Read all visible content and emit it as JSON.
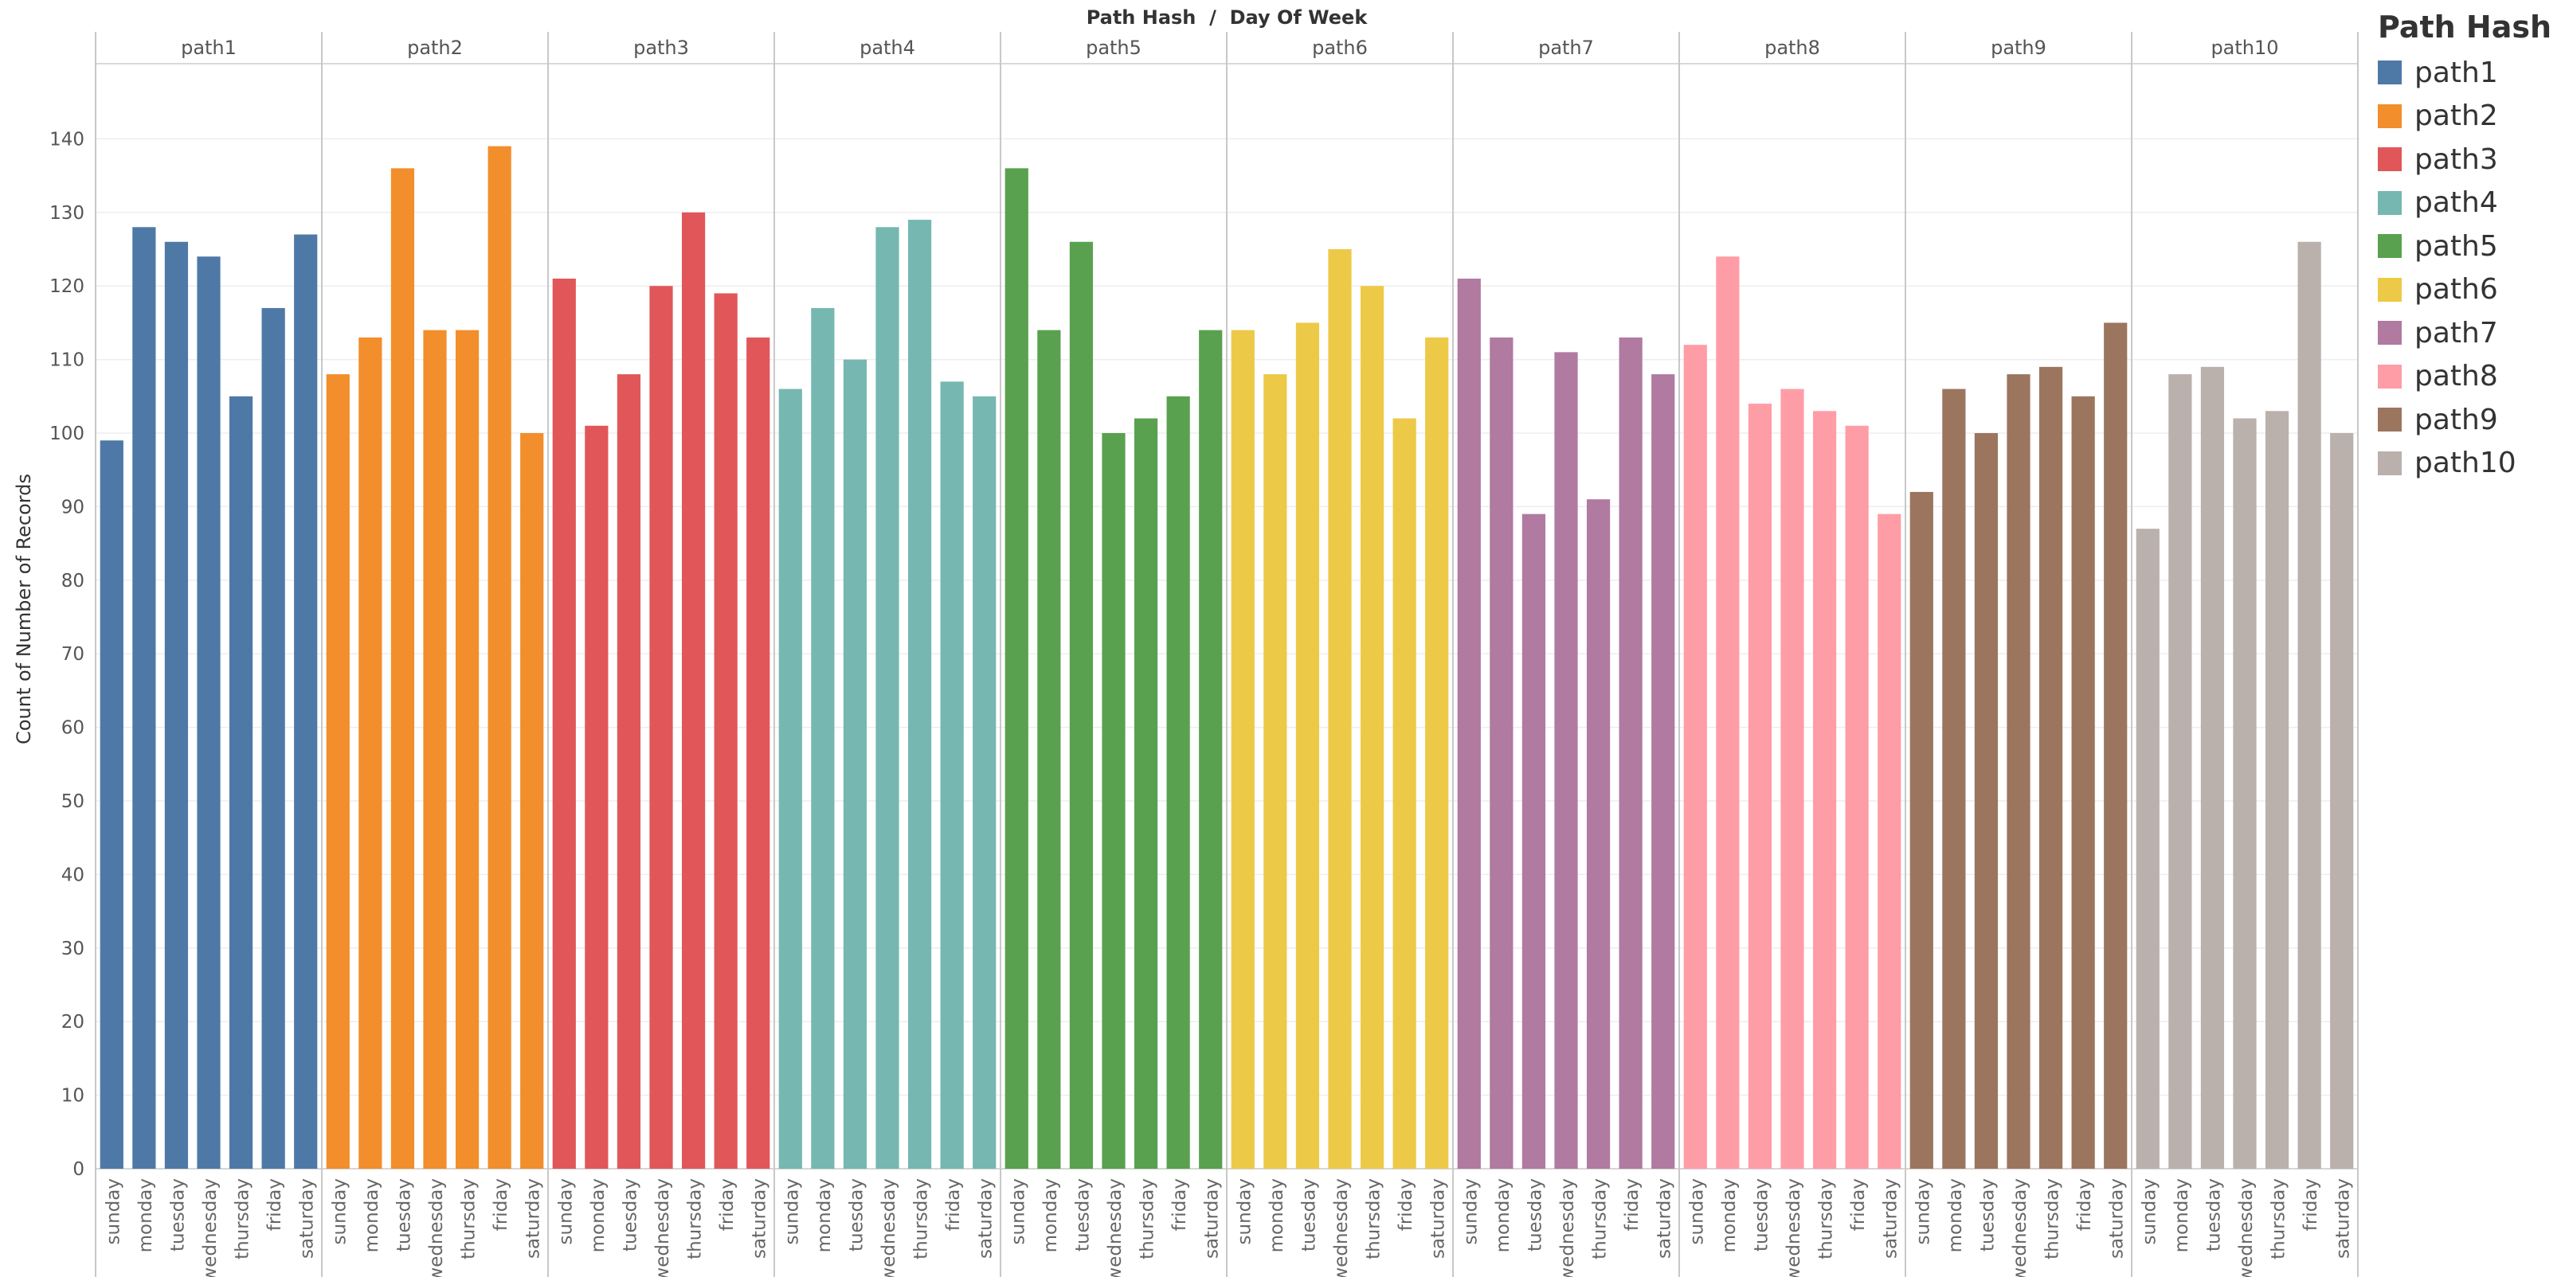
{
  "chart_data": {
    "type": "bar",
    "title": "Path Hash  /  Day Of Week",
    "ylabel": "Count of Number of Records",
    "xlabel": "",
    "ylim": [
      0,
      150
    ],
    "yticks": [
      0,
      10,
      20,
      30,
      40,
      50,
      60,
      70,
      80,
      90,
      100,
      110,
      120,
      130,
      140
    ],
    "grid": true,
    "legend": {
      "title": "Path Hash",
      "placement": "right"
    },
    "categories": [
      "sunday",
      "monday",
      "tuesday",
      "wednesday",
      "thursday",
      "friday",
      "saturday"
    ],
    "series": [
      {
        "name": "path1",
        "color": "#4e79a7",
        "values": [
          99,
          128,
          126,
          124,
          105,
          117,
          127
        ]
      },
      {
        "name": "path2",
        "color": "#f28e2b",
        "values": [
          108,
          113,
          136,
          114,
          114,
          139,
          100
        ]
      },
      {
        "name": "path3",
        "color": "#e15759",
        "values": [
          121,
          101,
          108,
          120,
          130,
          119,
          113
        ]
      },
      {
        "name": "path4",
        "color": "#76b7b2",
        "values": [
          106,
          117,
          110,
          128,
          129,
          107,
          105
        ]
      },
      {
        "name": "path5",
        "color": "#59a14f",
        "values": [
          136,
          114,
          126,
          100,
          102,
          105,
          114
        ]
      },
      {
        "name": "path6",
        "color": "#edc948",
        "values": [
          114,
          108,
          115,
          125,
          120,
          102,
          113
        ]
      },
      {
        "name": "path7",
        "color": "#b07aa1",
        "values": [
          121,
          113,
          89,
          111,
          91,
          113,
          108
        ]
      },
      {
        "name": "path8",
        "color": "#ff9da7",
        "values": [
          112,
          124,
          104,
          106,
          103,
          101,
          89
        ]
      },
      {
        "name": "path9",
        "color": "#9c755f",
        "values": [
          92,
          106,
          100,
          108,
          109,
          105,
          115
        ]
      },
      {
        "name": "path10",
        "color": "#bab0ac",
        "values": [
          87,
          108,
          109,
          102,
          103,
          126,
          100
        ]
      }
    ]
  }
}
